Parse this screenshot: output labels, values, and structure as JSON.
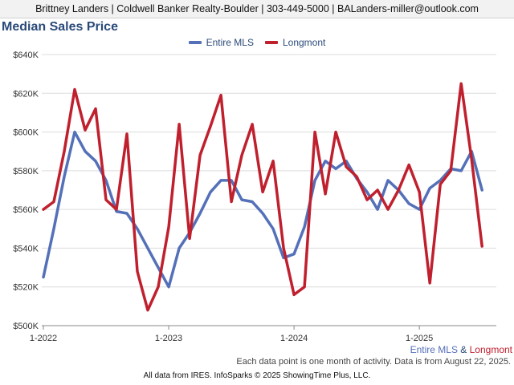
{
  "header": {
    "text": "Brittney Landers | Coldwell Banker Realty-Boulder | 303-449-5000 | BALanders-miller@outlook.com"
  },
  "colors": {
    "header_bg": "#f2f2f2",
    "title": "#2a4a7a",
    "entire_mls": "#5470b8",
    "longmont": "#c0202e"
  },
  "footer": {
    "series_a": "Entire MLS",
    "amp": " & ",
    "series_b": "Longmont",
    "note": "Each data point is one month of activity. Data is from August 22, 2025.",
    "source": "All data from IRES. InfoSparks © 2025 ShowingTime Plus, LLC."
  },
  "chart_data": {
    "type": "line",
    "title": "Median Sales Price",
    "xlabel": "",
    "ylabel": "",
    "ylim": [
      500000,
      640000
    ],
    "y_ticks": [
      500000,
      520000,
      540000,
      560000,
      580000,
      600000,
      620000,
      640000
    ],
    "y_tick_labels": [
      "$500K",
      "$520K",
      "$540K",
      "$560K",
      "$580K",
      "$600K",
      "$620K",
      "$640K"
    ],
    "x_tick_labels": [
      "1-2022",
      "1-2023",
      "1-2024",
      "1-2025"
    ],
    "x_tick_index": [
      0,
      12,
      24,
      36
    ],
    "grid": true,
    "legend_position": "top-center",
    "x": [
      "2022-01",
      "2022-02",
      "2022-03",
      "2022-04",
      "2022-05",
      "2022-06",
      "2022-07",
      "2022-08",
      "2022-09",
      "2022-10",
      "2022-11",
      "2022-12",
      "2023-01",
      "2023-02",
      "2023-03",
      "2023-04",
      "2023-05",
      "2023-06",
      "2023-07",
      "2023-08",
      "2023-09",
      "2023-10",
      "2023-11",
      "2023-12",
      "2024-01",
      "2024-02",
      "2024-03",
      "2024-04",
      "2024-05",
      "2024-06",
      "2024-07",
      "2024-08",
      "2024-09",
      "2024-10",
      "2024-11",
      "2024-12",
      "2025-01",
      "2025-02",
      "2025-03",
      "2025-04",
      "2025-05",
      "2025-06",
      "2025-07"
    ],
    "series": [
      {
        "name": "Entire MLS",
        "color": "#5470b8",
        "values": [
          525000,
          550000,
          577000,
          600000,
          590000,
          585000,
          575000,
          559000,
          558000,
          550000,
          540000,
          530000,
          520000,
          540000,
          548000,
          558000,
          569000,
          575000,
          575000,
          565000,
          564000,
          558000,
          550000,
          535000,
          537000,
          551000,
          575000,
          585000,
          581000,
          585000,
          576000,
          569000,
          560000,
          575000,
          570000,
          563000,
          560000,
          571000,
          575000,
          581000,
          580000,
          590000,
          570000
        ]
      },
      {
        "name": "Longmont",
        "color": "#c0202e",
        "values": [
          560000,
          564000,
          590000,
          622000,
          601000,
          612000,
          565000,
          560000,
          599000,
          528000,
          508000,
          520000,
          551000,
          604000,
          545000,
          588000,
          603000,
          619000,
          564000,
          588000,
          604000,
          569000,
          585000,
          540000,
          516000,
          520000,
          600000,
          568000,
          600000,
          582000,
          577000,
          565000,
          570000,
          560000,
          570000,
          583000,
          569000,
          522000,
          573000,
          580000,
          625000,
          586000,
          541000
        ]
      }
    ]
  }
}
